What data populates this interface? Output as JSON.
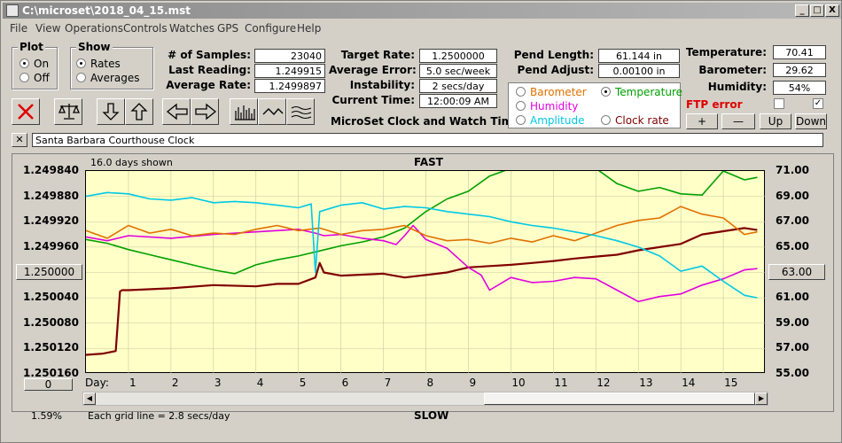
{
  "window": {
    "title": "C:\\microset\\2018_04_15.mst",
    "minimize": "_",
    "maximize": "□",
    "close": "X"
  },
  "menu": [
    "File",
    "View",
    "Operations",
    "Controls",
    "Watches",
    "GPS",
    "Configure",
    "Help"
  ],
  "plot_group": {
    "title": "Plot",
    "on": "On",
    "off": "Off",
    "selected": "On"
  },
  "show_group": {
    "title": "Show",
    "rates": "Rates",
    "averages": "Averages",
    "selected": "Rates"
  },
  "stats": {
    "samples_label": "# of Samples:",
    "samples": "23040",
    "last_reading_label": "Last Reading:",
    "last_reading": "1.249915",
    "average_rate_label": "Average Rate:",
    "average_rate": "1.2499897"
  },
  "targets": {
    "target_rate_label": "Target Rate:",
    "target_rate": "1.2500000",
    "average_error_label": "Average Error:",
    "average_error": "5.0 sec/week",
    "instability_label": "Instability:",
    "instability": "2 secs/day",
    "current_time_label": "Current Time:",
    "current_time": "12:00:09 AM",
    "subtitle": "MicroSet Clock and Watch Timer"
  },
  "pend": {
    "length_label": "Pend Length:",
    "length": "61.144 in",
    "adjust_label": "Pend Adjust:",
    "adjust": "0.00100 in"
  },
  "env": {
    "temperature_label": "Temperature:",
    "temperature": "70.41",
    "barometer_label": "Barometer:",
    "barometer": "29.62",
    "humidity_label": "Humidity:",
    "humidity": "54%",
    "ftp_error": "FTP error"
  },
  "overlay_options": {
    "barometer": "Barometer",
    "temperature": "Temperature",
    "humidity": "Humidity",
    "amplitude": "Amplitude",
    "clock_rate": "Clock rate",
    "selected": "Temperature",
    "colors": {
      "barometer": "#e07000",
      "temperature": "#00a000",
      "humidity": "#e000e0",
      "amplitude": "#00c8e6",
      "clock_rate": "#800000"
    }
  },
  "adjust_buttons": {
    "plus": "+",
    "minus": "—",
    "up": "Up",
    "down": "Down"
  },
  "clock_name": "Santa Barbara Courthouse Clock",
  "chart_header": {
    "days_shown": "16.0 days shown",
    "fast": "FAST",
    "slow": "SLOW",
    "grid_note": "Each grid line = 2.8 secs/day",
    "percent": "1.59%",
    "left_button": "1.250000",
    "right_button": "63.00",
    "bottom_button": "0",
    "day_label": "Day:"
  },
  "chart_data": {
    "type": "line",
    "xlabel": "Day:",
    "x_ticks": [
      "1",
      "2",
      "3",
      "4",
      "5",
      "6",
      "7",
      "8",
      "9",
      "10",
      "11",
      "12",
      "13",
      "14",
      "15"
    ],
    "xlim": [
      0,
      16
    ],
    "y_left_ticks": [
      "1.249840",
      "1.249880",
      "1.249920",
      "1.249960",
      "1.250000",
      "1.250040",
      "1.250080",
      "1.250120",
      "1.250160"
    ],
    "ylim_left": [
      1.25016,
      1.24984
    ],
    "y_right_ticks": [
      "71.00",
      "69.00",
      "67.00",
      "65.00",
      "63.00",
      "61.00",
      "59.00",
      "57.00",
      "55.00"
    ],
    "ylim_right": [
      55,
      71
    ],
    "grid": true,
    "series": [
      {
        "name": "Clock rate",
        "color": "#800000",
        "x": [
          0,
          0.4,
          0.7,
          0.8,
          0.85,
          1,
          2,
          3,
          4,
          4.5,
          5,
          5.4,
          5.5,
          5.6,
          6,
          7,
          7.5,
          8,
          8.5,
          9,
          9.5,
          10,
          10.5,
          11,
          11.5,
          12,
          12.5,
          13,
          13.5,
          14,
          14.5,
          15,
          15.5,
          15.8
        ],
        "y": [
          1.25013,
          1.250128,
          1.250124,
          1.25003,
          1.250028,
          1.250028,
          1.250025,
          1.25002,
          1.250022,
          1.250018,
          1.250018,
          1.250008,
          1.249985,
          1.25,
          1.250005,
          1.250002,
          1.250008,
          1.250004,
          1.25,
          1.249992,
          1.24999,
          1.249988,
          1.249985,
          1.249982,
          1.249978,
          1.249975,
          1.249972,
          1.249965,
          1.24996,
          1.249955,
          1.24994,
          1.249935,
          1.24993,
          1.249933
        ]
      },
      {
        "name": "Temperature",
        "color": "#00a000",
        "x": [
          0,
          0.5,
          1,
          1.5,
          2,
          2.5,
          3,
          3.5,
          4,
          4.5,
          5,
          5.5,
          6,
          6.5,
          7,
          7.5,
          8,
          8.5,
          9,
          9.5,
          10,
          10.5,
          11,
          11.5,
          12,
          12.5,
          13,
          13.5,
          14,
          14.5,
          15,
          15.5,
          15.8
        ],
        "y": [
          65.6,
          65.3,
          64.8,
          64.4,
          64.0,
          63.6,
          63.2,
          62.9,
          63.6,
          64.0,
          64.3,
          64.7,
          65.1,
          65.4,
          65.8,
          66.5,
          67.8,
          68.8,
          69.4,
          70.6,
          71.2,
          71.2,
          71.2,
          71.2,
          71.2,
          70.0,
          69.4,
          69.7,
          69.2,
          69.1,
          71.0,
          70.3,
          70.5
        ]
      },
      {
        "name": "Humidity",
        "color": "#e000e0",
        "x": [
          0,
          0.5,
          1,
          2,
          3,
          4,
          5,
          5.4,
          5.6,
          6,
          6.5,
          7,
          7.3,
          7.5,
          7.7,
          8,
          8.5,
          9,
          9.3,
          9.5,
          10,
          10.5,
          11,
          11.5,
          12,
          12.5,
          13,
          13.5,
          14,
          14.5,
          15,
          15.5,
          15.8
        ],
        "y": [
          65.8,
          65.5,
          65.9,
          65.7,
          66.0,
          66.2,
          66.4,
          66.1,
          65.9,
          66.0,
          65.7,
          65.5,
          65.2,
          65.9,
          66.7,
          65.6,
          64.9,
          63.4,
          62.8,
          61.6,
          62.6,
          62.2,
          62.3,
          62.6,
          62.5,
          61.6,
          60.7,
          61.1,
          61.3,
          62.0,
          62.5,
          63.2,
          63.3
        ]
      },
      {
        "name": "Barometer",
        "color": "#e07000",
        "x": [
          0,
          0.5,
          1,
          1.5,
          2,
          2.5,
          3,
          3.5,
          4,
          4.5,
          5,
          5.5,
          6,
          6.5,
          7,
          7.5,
          8,
          8.5,
          9,
          9.5,
          10,
          10.5,
          11,
          11.5,
          12,
          12.5,
          13,
          13.5,
          14,
          14.5,
          15,
          15.5,
          15.8
        ],
        "y": [
          66.3,
          65.7,
          66.7,
          66.1,
          66.4,
          65.9,
          66.1,
          66.0,
          66.4,
          66.7,
          66.3,
          66.5,
          66.0,
          66.3,
          66.4,
          66.7,
          65.9,
          65.5,
          65.6,
          65.3,
          65.7,
          65.4,
          65.9,
          65.5,
          66.1,
          66.7,
          67.1,
          67.3,
          68.2,
          67.6,
          67.3,
          66.0,
          66.2
        ]
      },
      {
        "name": "Amplitude",
        "color": "#00c8e6",
        "x": [
          0,
          0.5,
          1,
          1.5,
          2,
          2.5,
          3,
          3.5,
          4,
          4.5,
          5,
          5.3,
          5.4,
          5.5,
          6,
          6.5,
          7,
          7.5,
          8,
          8.5,
          9,
          9.5,
          10,
          10.5,
          11,
          11.5,
          12,
          12.5,
          13,
          13.5,
          14,
          14.5,
          15,
          15.5,
          15.8
        ],
        "y": [
          69.0,
          69.3,
          69.2,
          68.8,
          68.7,
          68.9,
          68.5,
          68.6,
          68.5,
          68.3,
          68.1,
          68.4,
          63.0,
          67.8,
          68.3,
          68.5,
          68.0,
          68.2,
          68.1,
          67.8,
          67.6,
          67.4,
          67.0,
          66.7,
          66.5,
          66.2,
          65.9,
          65.5,
          65.0,
          64.3,
          63.1,
          63.5,
          62.3,
          61.2,
          61.0
        ]
      }
    ]
  }
}
